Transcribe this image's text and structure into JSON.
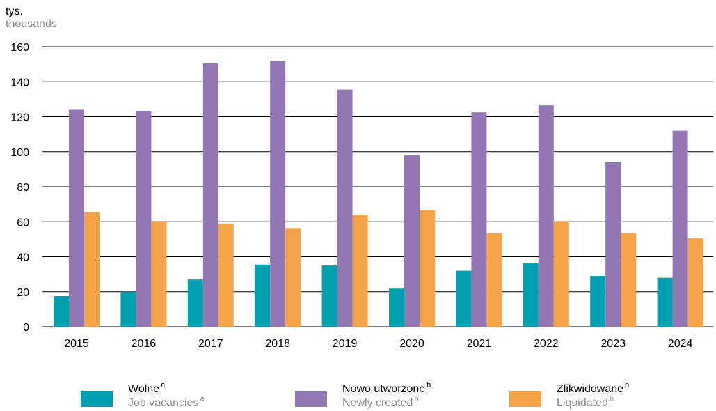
{
  "unit_label": {
    "pl": "tys.",
    "en": "thousands"
  },
  "chart_data": {
    "type": "bar",
    "categories": [
      "2015",
      "2016",
      "2017",
      "2018",
      "2019",
      "2020",
      "2021",
      "2022",
      "2023",
      "2024"
    ],
    "series": [
      {
        "name": "Wolne",
        "name_en": "Job vacancies",
        "footnote": "a",
        "color": "#00a0b0",
        "values": [
          17.5,
          20,
          27,
          35.5,
          35,
          21.8,
          32,
          36.5,
          29,
          28
        ]
      },
      {
        "name": "Nowo utworzone",
        "name_en": "Newly created",
        "footnote": "b",
        "color": "#9277b3",
        "values": [
          124,
          123,
          150.5,
          152,
          135.5,
          98,
          122.5,
          126.5,
          94,
          112
        ]
      },
      {
        "name": "Zlikwidowane",
        "name_en": "Liquidated",
        "footnote": "b",
        "color": "#f5a348",
        "values": [
          65.5,
          60,
          59,
          56,
          64,
          66.5,
          53.5,
          60,
          53.5,
          50.5
        ]
      }
    ],
    "ylim": [
      0,
      160
    ],
    "yticks": [
      0,
      20,
      40,
      60,
      80,
      100,
      120,
      140,
      160
    ],
    "grid": true,
    "legend_position": "bottom"
  }
}
